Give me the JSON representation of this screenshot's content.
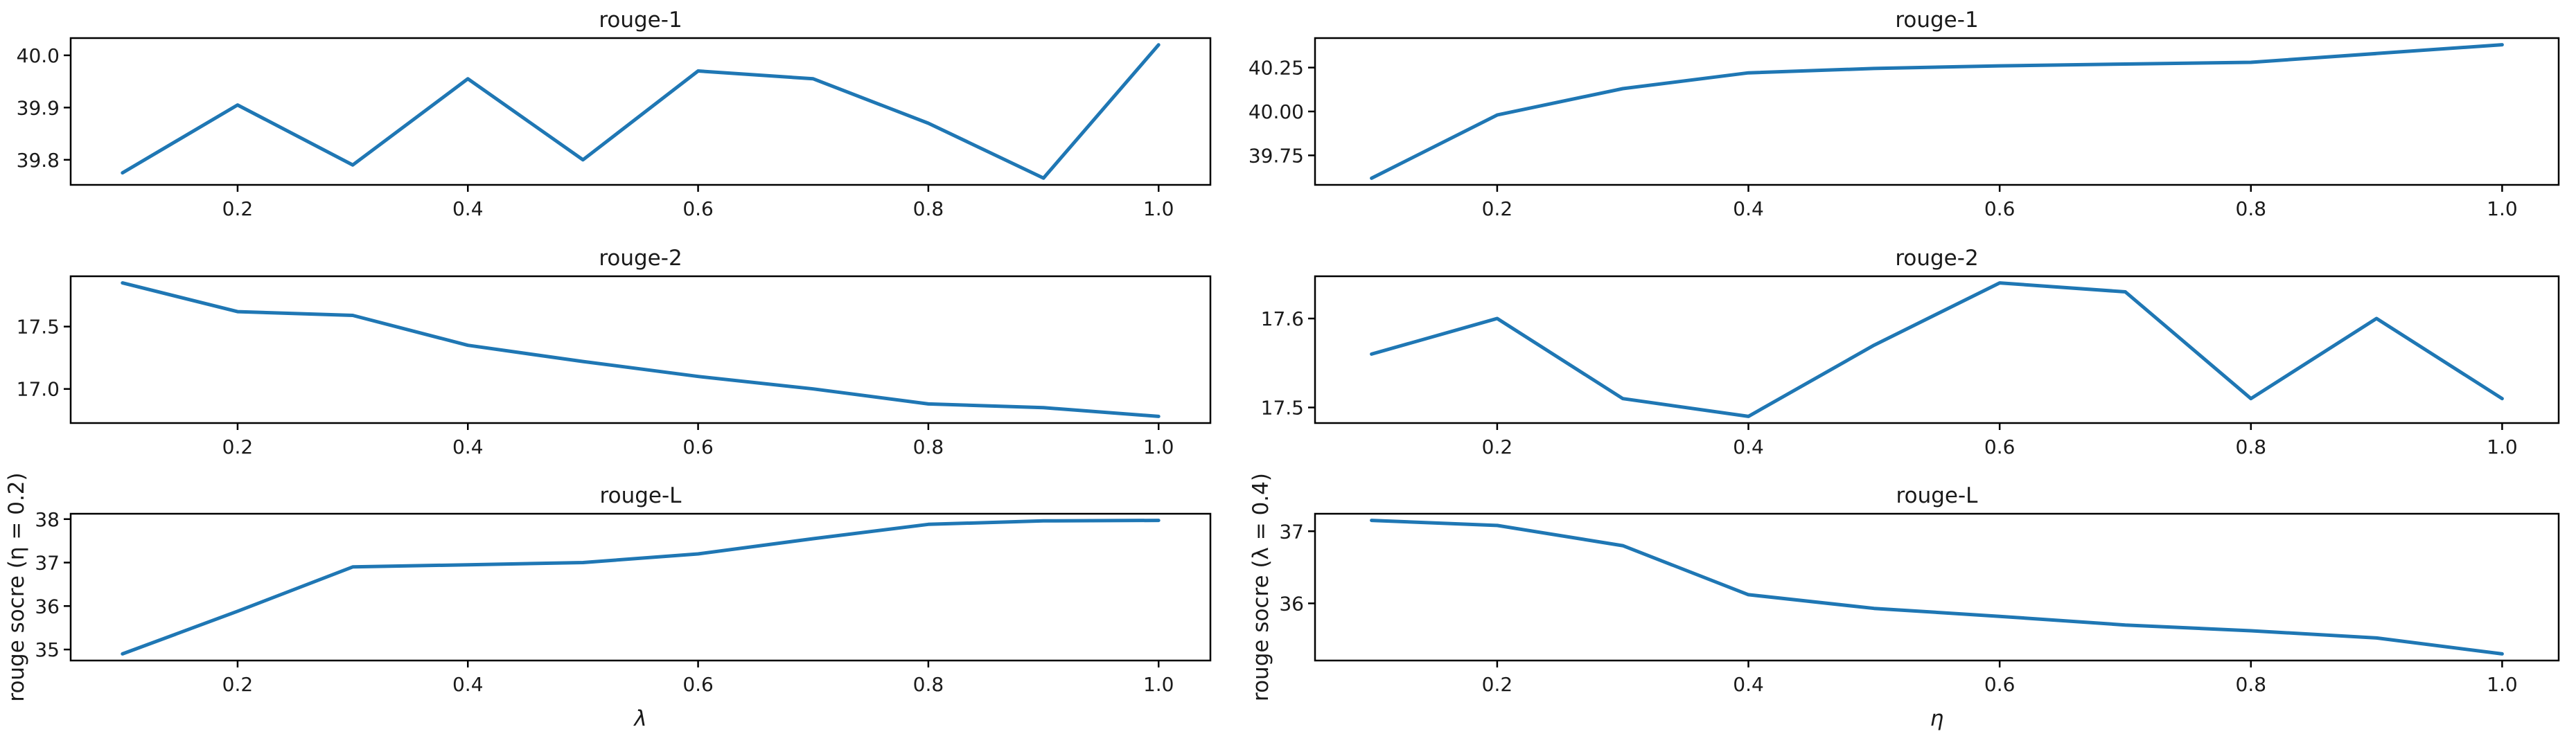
{
  "figure": {
    "background": "#ffffff",
    "line_color": "#1f77b4",
    "axis_color": "#000000",
    "text_color": "#1a1a1a"
  },
  "chart_data": [
    {
      "type": "line",
      "title": "rouge-1",
      "xlabel": "",
      "ylabel": "",
      "x": [
        0.1,
        0.2,
        0.3,
        0.4,
        0.5,
        0.6,
        0.7,
        0.8,
        0.9,
        1.0
      ],
      "values": [
        39.775,
        39.905,
        39.79,
        39.955,
        39.8,
        39.97,
        39.955,
        39.87,
        39.765,
        40.02
      ],
      "xlim": [
        0.055,
        1.045
      ],
      "ylim": [
        39.752,
        40.033
      ],
      "xticks": [
        0.2,
        0.4,
        0.6,
        0.8,
        1.0
      ],
      "xtick_labels": [
        "0.2",
        "0.4",
        "0.6",
        "0.8",
        "1.0"
      ],
      "yticks": [
        39.8,
        39.9,
        40.0
      ],
      "ytick_labels": [
        "39.8",
        "39.9",
        "40.0"
      ],
      "grid": false,
      "legend": null
    },
    {
      "type": "line",
      "title": "rouge-1",
      "xlabel": "",
      "ylabel": "",
      "x": [
        0.1,
        0.2,
        0.3,
        0.4,
        0.5,
        0.6,
        0.7,
        0.8,
        0.9,
        1.0
      ],
      "values": [
        39.62,
        39.98,
        40.13,
        40.22,
        40.245,
        40.26,
        40.27,
        40.28,
        40.33,
        40.38
      ],
      "xlim": [
        0.055,
        1.045
      ],
      "ylim": [
        39.582,
        40.418
      ],
      "xticks": [
        0.2,
        0.4,
        0.6,
        0.8,
        1.0
      ],
      "xtick_labels": [
        "0.2",
        "0.4",
        "0.6",
        "0.8",
        "1.0"
      ],
      "yticks": [
        39.75,
        40.0,
        40.25
      ],
      "ytick_labels": [
        "39.75",
        "40.00",
        "40.25"
      ],
      "grid": false,
      "legend": null
    },
    {
      "type": "line",
      "title": "rouge-2",
      "xlabel": "",
      "ylabel": "",
      "x": [
        0.1,
        0.2,
        0.3,
        0.4,
        0.5,
        0.6,
        0.7,
        0.8,
        0.9,
        1.0
      ],
      "values": [
        17.85,
        17.62,
        17.59,
        17.35,
        17.22,
        17.1,
        17.0,
        16.88,
        16.85,
        16.78
      ],
      "xlim": [
        0.055,
        1.045
      ],
      "ylim": [
        16.7265,
        17.9035
      ],
      "xticks": [
        0.2,
        0.4,
        0.6,
        0.8,
        1.0
      ],
      "xtick_labels": [
        "0.2",
        "0.4",
        "0.6",
        "0.8",
        "1.0"
      ],
      "yticks": [
        17.0,
        17.5
      ],
      "ytick_labels": [
        "17.0",
        "17.5"
      ],
      "grid": false,
      "legend": null
    },
    {
      "type": "line",
      "title": "rouge-2",
      "xlabel": "",
      "ylabel": "",
      "x": [
        0.1,
        0.2,
        0.3,
        0.4,
        0.5,
        0.6,
        0.7,
        0.8,
        0.9,
        1.0
      ],
      "values": [
        17.56,
        17.6,
        17.51,
        17.49,
        17.57,
        17.64,
        17.63,
        17.51,
        17.6,
        17.51
      ],
      "xlim": [
        0.055,
        1.045
      ],
      "ylim": [
        17.4825,
        17.6475
      ],
      "xticks": [
        0.2,
        0.4,
        0.6,
        0.8,
        1.0
      ],
      "xtick_labels": [
        "0.2",
        "0.4",
        "0.6",
        "0.8",
        "1.0"
      ],
      "yticks": [
        17.5,
        17.6
      ],
      "ytick_labels": [
        "17.5",
        "17.6"
      ],
      "grid": false,
      "legend": null
    },
    {
      "type": "line",
      "title": "rouge-L",
      "xlabel": "λ",
      "ylabel": "rouge socre (η = 0.2)",
      "x": [
        0.1,
        0.2,
        0.3,
        0.4,
        0.5,
        0.6,
        0.7,
        0.8,
        0.9,
        1.0
      ],
      "values": [
        34.9,
        35.88,
        36.9,
        36.95,
        37.0,
        37.2,
        37.55,
        37.88,
        37.96,
        37.97
      ],
      "xlim": [
        0.055,
        1.045
      ],
      "ylim": [
        34.7465,
        38.1235
      ],
      "xticks": [
        0.2,
        0.4,
        0.6,
        0.8,
        1.0
      ],
      "xtick_labels": [
        "0.2",
        "0.4",
        "0.6",
        "0.8",
        "1.0"
      ],
      "yticks": [
        35,
        36,
        37,
        38
      ],
      "ytick_labels": [
        "35",
        "36",
        "37",
        "38"
      ],
      "grid": false,
      "legend": null
    },
    {
      "type": "line",
      "title": "rouge-L",
      "xlabel": "η",
      "ylabel": "rouge socre (λ = 0.4)",
      "x": [
        0.1,
        0.2,
        0.3,
        0.4,
        0.5,
        0.6,
        0.7,
        0.8,
        0.9,
        1.0
      ],
      "values": [
        37.15,
        37.08,
        36.8,
        36.12,
        35.93,
        35.82,
        35.7,
        35.62,
        35.52,
        35.3
      ],
      "xlim": [
        0.055,
        1.045
      ],
      "ylim": [
        35.2075,
        37.2425
      ],
      "xticks": [
        0.2,
        0.4,
        0.6,
        0.8,
        1.0
      ],
      "xtick_labels": [
        "0.2",
        "0.4",
        "0.6",
        "0.8",
        "1.0"
      ],
      "yticks": [
        36,
        37
      ],
      "ytick_labels": [
        "36",
        "37"
      ],
      "grid": false,
      "legend": null
    }
  ]
}
